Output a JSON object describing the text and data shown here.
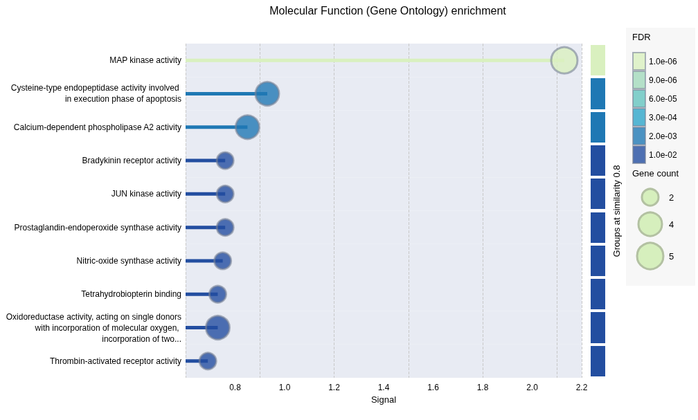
{
  "chart_data": {
    "type": "lollipop",
    "title": "Molecular Function (Gene Ontology) enrichment",
    "xlabel": "Signal",
    "y2label": "Groups at similarity 0.8",
    "legend_title": "FDR",
    "legend": "top right",
    "orientation": "horizontal",
    "categories": [
      "MAP kinase activity",
      "Cysteine-type endopeptidase activity involved in execution phase of apoptosis",
      "Calcium-dependent phospholipase A2 activity",
      "Bradykinin receptor activity",
      "JUN kinase activity",
      "Prostaglandin-endoperoxide synthase activity",
      "Nitric-oxide synthase activity",
      "Tetrahydrobiopterin binding",
      "Oxidoreductase activity, acting on single donors with incorporation of molecular oxygen, incorporation of two...",
      "Thrombin-activated receptor activity"
    ],
    "series": [
      {
        "name": "1.0e-06",
        "color": "#d9f0bf",
        "values": [
          2.13,
          null,
          null,
          null,
          null,
          null,
          null,
          null,
          null,
          null
        ],
        "sizes": [
          5,
          null,
          null,
          null,
          null,
          null,
          null,
          null,
          null,
          null
        ]
      },
      {
        "name": "9.0e-06",
        "color": "#a3dabc",
        "values": [
          null,
          null,
          null,
          null,
          null,
          null,
          null,
          null,
          null,
          null
        ]
      },
      {
        "name": "6.0e-05",
        "color": "#64c4bf",
        "values": [
          null,
          null,
          null,
          null,
          null,
          null,
          null,
          null,
          null,
          null
        ]
      },
      {
        "name": "3.0e-04",
        "color": "#2da5c9",
        "values": [
          null,
          null,
          null,
          null,
          null,
          null,
          null,
          null,
          null,
          null
        ]
      },
      {
        "name": "2.0e-03",
        "color": "#1f78b4",
        "values": [
          null,
          0.93,
          0.85,
          null,
          null,
          null,
          null,
          null,
          null,
          null
        ],
        "sizes": [
          null,
          4,
          4,
          null,
          null,
          null,
          null,
          null,
          null,
          null
        ]
      },
      {
        "name": "1.0e-02",
        "color": "#234ea0",
        "values": [
          null,
          null,
          null,
          0.76,
          0.76,
          0.76,
          0.75,
          0.73,
          0.73,
          0.69
        ],
        "sizes": [
          null,
          null,
          null,
          2,
          2,
          2,
          2,
          2,
          4,
          2
        ]
      }
    ],
    "size_legend": [
      2,
      4,
      5
    ],
    "annotations": [
      "Gene count"
    ],
    "xlim": [
      0.6,
      2.2
    ],
    "xticks": [
      0.8,
      {
        "value": 1,
        "label": "1.0"
      },
      1.2,
      1.4,
      1.6,
      1.8,
      {
        "value": 2,
        "label": "2.0"
      },
      2.2
    ],
    "grid": "x"
  }
}
